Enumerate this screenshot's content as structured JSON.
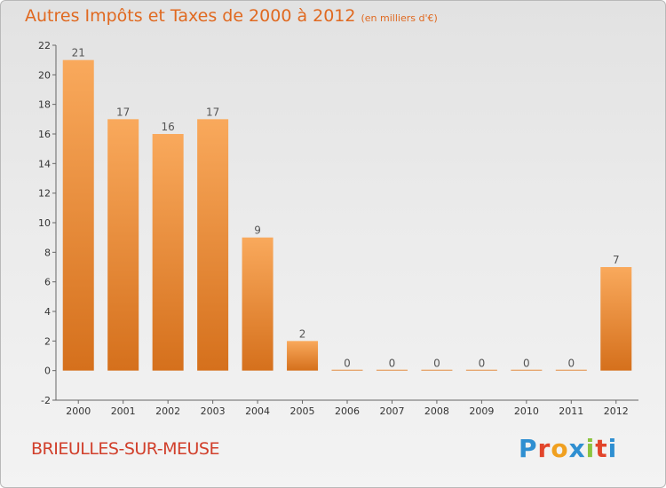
{
  "title": "Autres Impôts et Taxes de 2000 à 2012",
  "subtitle": "(en milliers d'€)",
  "commune": "BRIEULLES-SUR-MEUSE",
  "logo": {
    "letters": [
      "P",
      "r",
      "o",
      "x",
      "i",
      "t",
      "i"
    ],
    "colors": [
      "#2f8fd1",
      "#e2452b",
      "#f0a020",
      "#2f8fd1",
      "#8cc43f",
      "#e2452b",
      "#2f8fd1"
    ]
  },
  "colors": {
    "bar_light": "#f8a65a",
    "bar_dark": "#d8731f",
    "title": "#e06920",
    "commune": "#d13f2b"
  },
  "chart_data": {
    "type": "bar",
    "categories": [
      "2000",
      "2001",
      "2002",
      "2003",
      "2004",
      "2005",
      "2006",
      "2007",
      "2008",
      "2009",
      "2010",
      "2011",
      "2012"
    ],
    "values": [
      21,
      17,
      16,
      17,
      9,
      2,
      0,
      0,
      0,
      0,
      0,
      0,
      7
    ],
    "ylim": [
      -2,
      22
    ],
    "yticks": [
      -2,
      0,
      2,
      4,
      6,
      8,
      10,
      12,
      14,
      16,
      18,
      20,
      22
    ],
    "grid": false,
    "legend": "none"
  }
}
